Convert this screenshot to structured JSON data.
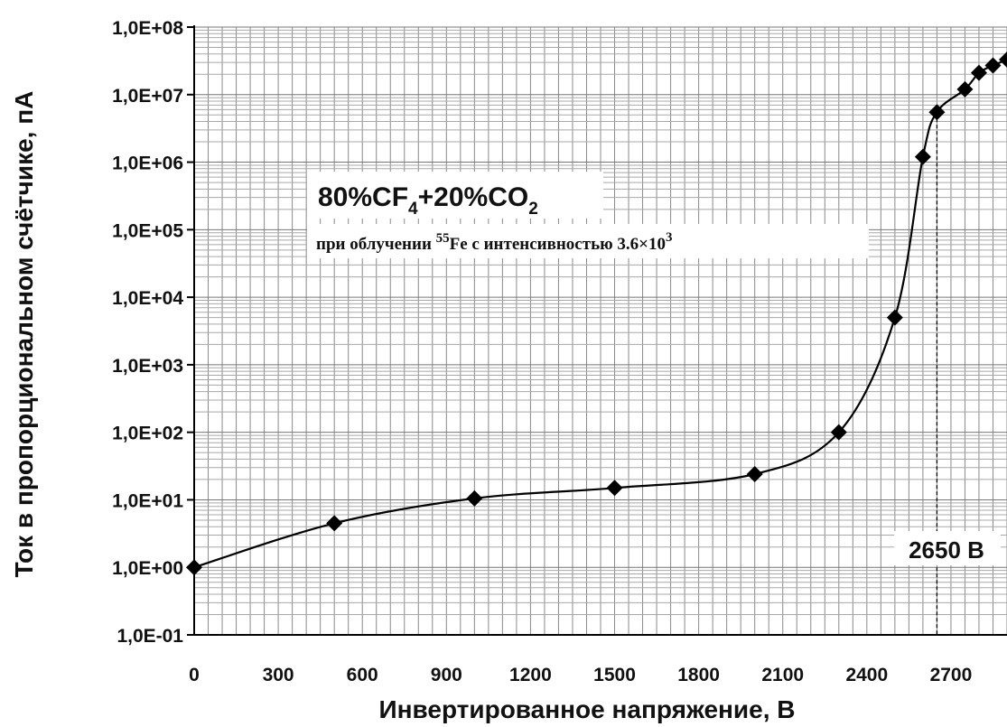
{
  "chart_data": {
    "type": "line",
    "xlabel": "Инвертированное напряжение, В",
    "ylabel": "Ток в пропорциональном счётчике, пА",
    "x_ticks": [
      "0",
      "300",
      "600",
      "900",
      "1200",
      "1500",
      "1800",
      "2100",
      "2400",
      "2700"
    ],
    "y_ticks": [
      "1,0E-01",
      "1,0E+00",
      "1,0E+01",
      "1,0E+02",
      "1,0E+03",
      "1,0E+04",
      "1,0E+05",
      "1,0E+06",
      "1,0E+07",
      "1,0E+08"
    ],
    "xlim": [
      0,
      2900
    ],
    "ylim": [
      0.1,
      100000000
    ],
    "y_scale": "log",
    "grid": true,
    "marker": "diamond",
    "line_color": "#000000",
    "series": [
      {
        "x": [
          0,
          500,
          1000,
          1500,
          2000,
          2300,
          2500,
          2600,
          2650,
          2750,
          2800,
          2850,
          2900
        ],
        "y": [
          1,
          4.5,
          10.5,
          15,
          24,
          100,
          5000,
          1200000,
          5500000,
          12000000,
          21000000,
          27000000,
          33000000
        ]
      }
    ],
    "annotations": {
      "gas_mixture": {
        "part1": "80%CF",
        "sub1": "4",
        "part2": "+20%CO",
        "sub2": "2"
      },
      "irradiation": {
        "text": "при облучении ",
        "isotope_mass": "55",
        "isotope_rest": "Fe с интенсивностью 3.6×10",
        "exponent": "3"
      },
      "threshold": {
        "label": "2650 В",
        "x": 2650
      }
    }
  }
}
